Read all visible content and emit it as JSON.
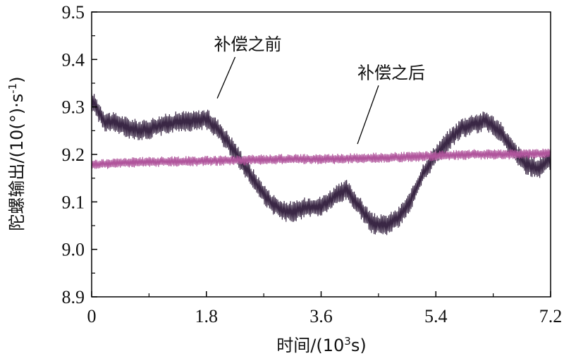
{
  "chart_data": {
    "type": "line",
    "xlabel_main": "时间/(10",
    "xlabel_sup": "3",
    "xlabel_tail": "s)",
    "ylabel_main": "陀螺输出/(10(°)·s",
    "ylabel_sup": "-1",
    "ylabel_tail": ")",
    "xlim": [
      0,
      7.2
    ],
    "ylim": [
      8.9,
      9.5
    ],
    "x_ticks": [
      0,
      1.8,
      3.6,
      5.4,
      7.2
    ],
    "x_tick_labels": [
      "0",
      "1.8",
      "3.6",
      "5.4",
      "7.2"
    ],
    "y_ticks": [
      8.9,
      9.0,
      9.1,
      9.2,
      9.3,
      9.4,
      9.5
    ],
    "y_tick_labels": [
      "8.9",
      "9.0",
      "9.1",
      "9.2",
      "9.3",
      "9.4",
      "9.5"
    ],
    "grid": false,
    "series": [
      {
        "name": "补偿之前",
        "color": "#3a2745",
        "noise": 0.045,
        "trend_x": [
          0,
          0.2,
          0.4,
          0.6,
          0.8,
          1.0,
          1.2,
          1.4,
          1.6,
          1.8,
          2.0,
          2.2,
          2.4,
          2.6,
          2.8,
          3.0,
          3.2,
          3.4,
          3.6,
          3.8,
          4.0,
          4.2,
          4.4,
          4.6,
          4.8,
          5.0,
          5.2,
          5.4,
          5.6,
          5.8,
          6.0,
          6.2,
          6.4,
          6.6,
          6.8,
          7.0,
          7.2
        ],
        "trend_y": [
          9.315,
          9.27,
          9.265,
          9.255,
          9.25,
          9.258,
          9.265,
          9.27,
          9.27,
          9.275,
          9.25,
          9.215,
          9.175,
          9.135,
          9.1,
          9.08,
          9.08,
          9.09,
          9.09,
          9.11,
          9.125,
          9.09,
          9.055,
          9.05,
          9.065,
          9.1,
          9.16,
          9.2,
          9.23,
          9.255,
          9.265,
          9.27,
          9.25,
          9.21,
          9.18,
          9.17,
          9.19
        ]
      },
      {
        "name": "补偿之后",
        "color": "#b0559c",
        "noise": 0.022,
        "trend_x": [
          0,
          0.6,
          1.2,
          1.8,
          2.4,
          3.0,
          3.6,
          4.2,
          4.8,
          5.4,
          6.0,
          6.6,
          7.2
        ],
        "trend_y": [
          9.178,
          9.183,
          9.185,
          9.186,
          9.188,
          9.19,
          9.19,
          9.192,
          9.194,
          9.197,
          9.2,
          9.2,
          9.202
        ]
      }
    ],
    "annotations": [
      {
        "text": "补偿之前",
        "x": 2.45,
        "y": 9.42,
        "pointer_x": 1.97,
        "pointer_y": 9.318
      },
      {
        "text": "补偿之后",
        "x": 4.7,
        "y": 9.36,
        "pointer_x": 4.17,
        "pointer_y": 9.222
      }
    ]
  }
}
